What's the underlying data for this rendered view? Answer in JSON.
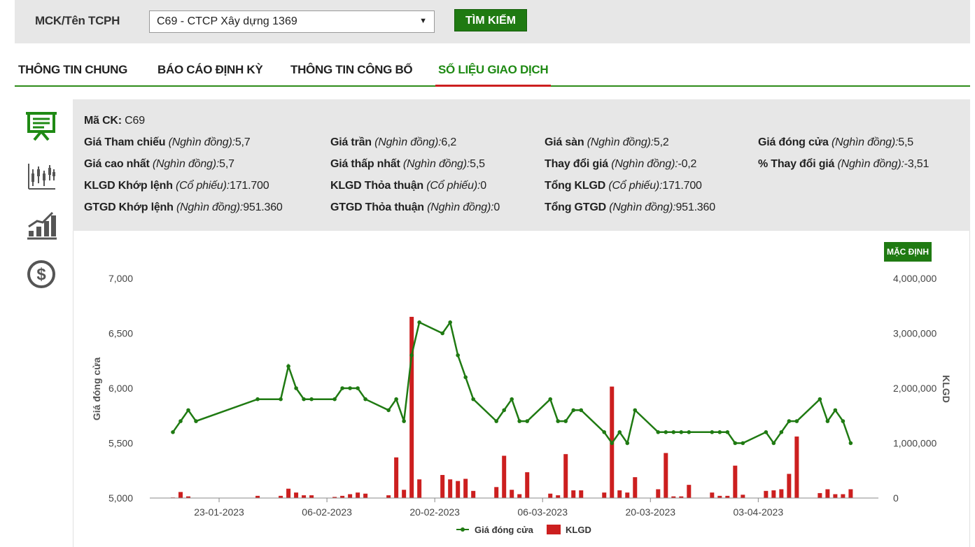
{
  "search": {
    "label": "MCK/Tên TCPH",
    "selected_value": "C69 - CTCP Xây dựng 1369",
    "button_label": "TÌM KIẾM"
  },
  "tabs": [
    {
      "label": "THÔNG TIN CHUNG",
      "active": false
    },
    {
      "label": "BÁO CÁO ĐỊNH KỲ",
      "active": false
    },
    {
      "label": "THÔNG TIN CÔNG BỐ",
      "active": false
    },
    {
      "label": "SỐ LIỆU GIAO DỊCH",
      "active": true
    }
  ],
  "side_icons": [
    "presentation-board-icon",
    "candlestick-chart-icon",
    "growth-bar-chart-icon",
    "dollar-coin-icon"
  ],
  "colors": {
    "brand_green": "#1f7a12",
    "tab_active_underline": "#cc1f1f",
    "line_series": "#1f7a12",
    "bar_series": "#cc1f1f"
  },
  "info": {
    "ma_ck": {
      "label": "Mã CK:",
      "value": "C69"
    },
    "items": [
      {
        "label": "Giá Tham chiếu",
        "unit": "(Nghìn đồng):",
        "value": "5,7"
      },
      {
        "label": "Giá trần",
        "unit": "(Nghìn đồng):",
        "value": "6,2"
      },
      {
        "label": "Giá sàn",
        "unit": "(Nghìn đồng):",
        "value": "5,2"
      },
      {
        "label": "Giá đóng cửa",
        "unit": "(Nghìn đồng):",
        "value": "5,5"
      },
      {
        "label": "Giá cao nhất",
        "unit": "(Nghìn đồng):",
        "value": "5,7"
      },
      {
        "label": "Giá thấp nhất",
        "unit": "(Nghìn đồng):",
        "value": "5,5"
      },
      {
        "label": "Thay đổi giá",
        "unit": "(Nghìn đồng):",
        "value": "-0,2"
      },
      {
        "label": "% Thay đổi giá",
        "unit": "(Nghìn đồng):",
        "value": "-3,51"
      },
      {
        "label": "KLGD Khớp lệnh",
        "unit": "(Cổ phiếu):",
        "value": "171.700"
      },
      {
        "label": "KLGD Thỏa thuận",
        "unit": "(Cổ phiếu):",
        "value": "0"
      },
      {
        "label": "Tổng KLGD",
        "unit": "(Cổ phiếu):",
        "value": "171.700"
      },
      {
        "label": "GTGD Khớp lệnh",
        "unit": "(Nghìn đồng):",
        "value": "951.360"
      },
      {
        "label": "GTGD Thỏa thuận",
        "unit": "(Nghìn đồng):",
        "value": "0"
      },
      {
        "label": "Tổng GTGD",
        "unit": "(Nghìn đồng):",
        "value": "951.360"
      }
    ]
  },
  "chart_reset_label": "MẶC ĐỊNH",
  "chart_data": {
    "type": "line",
    "xlabel": "",
    "ylabel": "Giá đóng cửa",
    "y2label": "KLGD",
    "ylim": [
      5000,
      7000
    ],
    "y2lim": [
      0,
      4000000
    ],
    "y_ticks": [
      "5,000",
      "5,500",
      "6,000",
      "6,500",
      "7,000"
    ],
    "y2_ticks": [
      "0",
      "1,000,000",
      "2,000,000",
      "3,000,000",
      "4,000,000"
    ],
    "x_ticks": [
      {
        "label": "23-01-2023",
        "day": 23
      },
      {
        "label": "06-02-2023",
        "day": 37
      },
      {
        "label": "20-02-2023",
        "day": 51
      },
      {
        "label": "06-03-2023",
        "day": 65
      },
      {
        "label": "20-03-2023",
        "day": 79
      },
      {
        "label": "03-04-2023",
        "day": 93
      }
    ],
    "legend": [
      "Giá đóng cửa",
      "KLGD"
    ],
    "legend_position": "bottom",
    "grid": false,
    "series": [
      {
        "name": "Giá đóng cửa",
        "type": "line",
        "points": [
          [
            17,
            5600
          ],
          [
            18,
            5700
          ],
          [
            19,
            5800
          ],
          [
            20,
            5700
          ],
          [
            28,
            5900
          ],
          [
            31,
            5900
          ],
          [
            32,
            6200
          ],
          [
            33,
            6000
          ],
          [
            34,
            5900
          ],
          [
            35,
            5900
          ],
          [
            38,
            5900
          ],
          [
            39,
            6000
          ],
          [
            40,
            6000
          ],
          [
            41,
            6000
          ],
          [
            42,
            5900
          ],
          [
            45,
            5800
          ],
          [
            46,
            5900
          ],
          [
            47,
            5700
          ],
          [
            48,
            6300
          ],
          [
            49,
            6600
          ],
          [
            52,
            6500
          ],
          [
            53,
            6600
          ],
          [
            54,
            6300
          ],
          [
            55,
            6100
          ],
          [
            56,
            5900
          ],
          [
            59,
            5700
          ],
          [
            60,
            5800
          ],
          [
            61,
            5900
          ],
          [
            62,
            5700
          ],
          [
            63,
            5700
          ],
          [
            66,
            5900
          ],
          [
            67,
            5700
          ],
          [
            68,
            5700
          ],
          [
            69,
            5800
          ],
          [
            70,
            5800
          ],
          [
            73,
            5600
          ],
          [
            74,
            5500
          ],
          [
            75,
            5600
          ],
          [
            76,
            5500
          ],
          [
            77,
            5800
          ],
          [
            80,
            5600
          ],
          [
            81,
            5600
          ],
          [
            82,
            5600
          ],
          [
            83,
            5600
          ],
          [
            84,
            5600
          ],
          [
            87,
            5600
          ],
          [
            88,
            5600
          ],
          [
            89,
            5600
          ],
          [
            90,
            5500
          ],
          [
            91,
            5500
          ],
          [
            94,
            5600
          ],
          [
            95,
            5500
          ],
          [
            96,
            5600
          ],
          [
            97,
            5700
          ],
          [
            98,
            5700
          ],
          [
            101,
            5900
          ],
          [
            102,
            5700
          ],
          [
            103,
            5800
          ],
          [
            104,
            5700
          ],
          [
            105,
            5500
          ]
        ]
      },
      {
        "name": "KLGD",
        "type": "bar",
        "points": [
          [
            17,
            10000
          ],
          [
            18,
            110000
          ],
          [
            19,
            30000
          ],
          [
            28,
            40000
          ],
          [
            31,
            40000
          ],
          [
            32,
            170000
          ],
          [
            33,
            100000
          ],
          [
            34,
            50000
          ],
          [
            35,
            50000
          ],
          [
            38,
            20000
          ],
          [
            39,
            40000
          ],
          [
            40,
            70000
          ],
          [
            41,
            100000
          ],
          [
            42,
            80000
          ],
          [
            45,
            50000
          ],
          [
            46,
            740000
          ],
          [
            47,
            150000
          ],
          [
            48,
            3300000
          ],
          [
            49,
            340000
          ],
          [
            52,
            420000
          ],
          [
            53,
            340000
          ],
          [
            54,
            310000
          ],
          [
            55,
            350000
          ],
          [
            56,
            130000
          ],
          [
            59,
            200000
          ],
          [
            60,
            770000
          ],
          [
            61,
            150000
          ],
          [
            62,
            70000
          ],
          [
            63,
            470000
          ],
          [
            66,
            80000
          ],
          [
            67,
            50000
          ],
          [
            68,
            800000
          ],
          [
            69,
            140000
          ],
          [
            70,
            140000
          ],
          [
            73,
            100000
          ],
          [
            74,
            2030000
          ],
          [
            75,
            140000
          ],
          [
            76,
            100000
          ],
          [
            77,
            380000
          ],
          [
            80,
            160000
          ],
          [
            81,
            820000
          ],
          [
            82,
            30000
          ],
          [
            83,
            30000
          ],
          [
            84,
            240000
          ],
          [
            87,
            100000
          ],
          [
            88,
            40000
          ],
          [
            89,
            40000
          ],
          [
            90,
            590000
          ],
          [
            91,
            60000
          ],
          [
            94,
            130000
          ],
          [
            95,
            140000
          ],
          [
            96,
            160000
          ],
          [
            97,
            440000
          ],
          [
            98,
            1120000
          ],
          [
            101,
            90000
          ],
          [
            102,
            160000
          ],
          [
            103,
            70000
          ],
          [
            104,
            70000
          ],
          [
            105,
            160000
          ]
        ]
      }
    ]
  }
}
